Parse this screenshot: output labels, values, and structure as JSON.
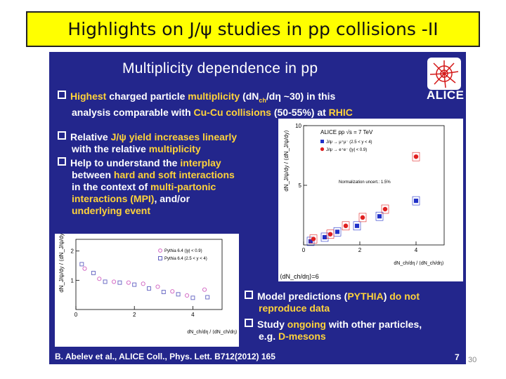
{
  "header": {
    "title": "Highlights on J/ψ studies in pp collisions -II"
  },
  "slide": {
    "title": "Multiplicity dependence in pp",
    "logo_text": "ALICE",
    "bullet1": {
      "p1": "Highest",
      "p2": " charged particle ",
      "p3": "multiplicity",
      "p4": " (dN",
      "p5": "ch",
      "p6": "/dη",
      "p7": " ~30) in this",
      "line2a": "analysis comparable with ",
      "line2b": "Cu-Cu collisions",
      "line2c": " (50-55%) at ",
      "line2d": "RHIC"
    },
    "bullet2": {
      "l1a": "Relative ",
      "l1b": "J/ψ yield increases linearly",
      "l2a": "with the relative ",
      "l2b": "multiplicity"
    },
    "bullet3": {
      "l1a": "Help to understand the ",
      "l1b": "interplay",
      "l2a": "between ",
      "l2b": "hard and soft interactions",
      "l3a": "in the context of ",
      "l3b": "multi-partonic",
      "l4a": "interactions (MPI)",
      "l4b": ", and/or",
      "l5": "underlying event"
    },
    "bullet4": {
      "l1a": "Model predictions (",
      "l1b": "PYTHIA",
      "l1c": ") ",
      "l1d": "do not",
      "l2": "reproduce data"
    },
    "bullet5": {
      "l1a": "Study ",
      "l1b": "ongoing",
      "l1c": " with other particles,",
      "l2a": "e.g. ",
      "l2b": "D-mesons"
    },
    "reference": "B. Abelev et al., ALICE Coll., Phys. Lett. B712(2012) 165",
    "slide_number": "7"
  },
  "plot_main": {
    "ylabel": "dN_J/ψ/dy / ⟨dN_J/ψ/dy⟩",
    "header": "ALICE pp √s = 7 TeV",
    "legend": [
      "J/ψ → μ⁺μ⁻ (2.5 < y < 4)",
      "J/ψ → e⁺e⁻ (|y| < 0.9)"
    ],
    "norm": "Normalization uncert.: 1.5%",
    "xlabel": "dN_ch/dη / ⟨dN_ch/dη⟩",
    "below_label": "⟨dN_ch/dη⟩=6"
  },
  "plot_pythia": {
    "ylabel": "dN_J/ψ/dy / ⟨dN_J/ψ/dy⟩",
    "legend": [
      "Pythia 6.4 (|y| < 0.9)",
      "Pythia 6.4 (2.5 < y < 4)"
    ],
    "xlabel": "dN_ch/dη / ⟨dN_ch/dη⟩"
  },
  "colors": {
    "slide_bg": "#23268c",
    "highlight": "#ffd33a",
    "title_bg": "#ffff00",
    "red": "#e02020",
    "blue": "#2030c8"
  },
  "page_number": "30",
  "chart_data": [
    {
      "type": "scatter",
      "title": "ALICE pp √s = 7 TeV",
      "xlabel": "dN_ch/dη / ⟨dN_ch/dη⟩",
      "ylabel": "dN_J/ψ/dy / ⟨dN_J/ψ/dy⟩",
      "xlim": [
        0,
        5
      ],
      "ylim": [
        0,
        10
      ],
      "x_ticks": [
        "0",
        "2",
        "4"
      ],
      "y_ticks": [
        "5",
        "10"
      ],
      "series": [
        {
          "name": "J/ψ → μ⁺μ⁻ (2.5 < y < 4)",
          "x": [
            0.25,
            0.75,
            1.2,
            1.9,
            2.7,
            4.0
          ],
          "y": [
            0.3,
            0.65,
            1.1,
            1.6,
            2.4,
            3.7
          ]
        },
        {
          "name": "J/ψ → e⁺e⁻ (|y| < 0.9)",
          "x": [
            0.35,
            0.95,
            1.5,
            2.1,
            2.9,
            4.0
          ],
          "y": [
            0.5,
            0.9,
            1.6,
            2.3,
            3.0,
            7.4
          ]
        }
      ]
    },
    {
      "type": "scatter",
      "title": "",
      "xlabel": "dN_ch/dη / ⟨dN_ch/dη⟩",
      "ylabel": "dN_J/ψ/dy / ⟨dN_J/ψ/dy⟩",
      "xlim": [
        0,
        5
      ],
      "ylim": [
        0,
        2.4
      ],
      "x_ticks": [
        "0",
        "2",
        "4"
      ],
      "y_ticks": [
        "1",
        "2"
      ],
      "series": [
        {
          "name": "Pythia 6.4 (|y| < 0.9)",
          "x": [
            0.3,
            0.8,
            1.3,
            1.8,
            2.3,
            2.8,
            3.3,
            3.8,
            4.4
          ],
          "y": [
            1.4,
            1.05,
            0.95,
            0.92,
            0.88,
            0.78,
            0.62,
            0.48,
            0.68
          ]
        },
        {
          "name": "Pythia 6.4 (2.5 < y < 4)",
          "x": [
            0.2,
            0.6,
            1.0,
            1.5,
            2.0,
            2.5,
            3.0,
            3.5,
            4.0,
            4.5
          ],
          "y": [
            1.55,
            1.25,
            0.95,
            0.92,
            0.85,
            0.72,
            0.6,
            0.52,
            0.4,
            0.42
          ]
        }
      ]
    }
  ]
}
